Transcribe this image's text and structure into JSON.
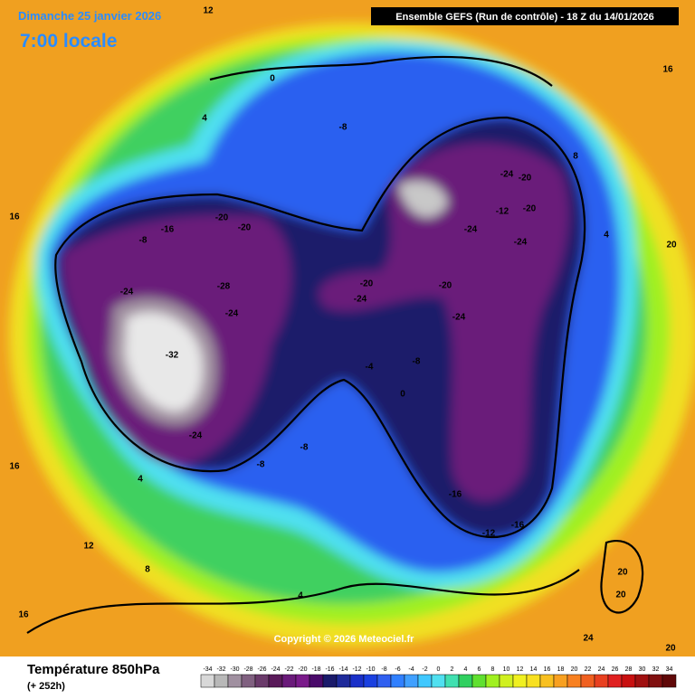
{
  "header": {
    "date": "Dimanche 25 janvier 2026",
    "time": "7:00 locale",
    "run": "Ensemble GEFS  (Run de contrôle)  -  18 Z du 14/01/2026"
  },
  "footer": {
    "field": "Température 850hPa",
    "lead": "(+ 252h)",
    "copyright": "Copyright © 2026 Meteociel.fr"
  },
  "legend": {
    "ticks": [
      -34,
      -32,
      -30,
      -28,
      -26,
      -24,
      -22,
      -20,
      -18,
      -16,
      -14,
      -12,
      -10,
      -8,
      -6,
      -4,
      -2,
      0,
      2,
      4,
      6,
      8,
      10,
      12,
      14,
      16,
      18,
      20,
      22,
      24,
      26,
      28,
      30,
      32,
      34
    ],
    "colors": [
      "#d8d8d8",
      "#b8b8b8",
      "#a090a0",
      "#806080",
      "#6a3a6a",
      "#5a1a5a",
      "#6a1a7a",
      "#7a1a8a",
      "#4a0a6a",
      "#1a1a6a",
      "#1e2a9a",
      "#1a30c8",
      "#1a40e0",
      "#3060f0",
      "#3080ff",
      "#40a0ff",
      "#40c8ff",
      "#50e0f0",
      "#40e0b0",
      "#30d060",
      "#60e030",
      "#a0f020",
      "#d0f020",
      "#f0f020",
      "#f8e020",
      "#f8c020",
      "#f8a020",
      "#f88020",
      "#f06020",
      "#e84020",
      "#e02020",
      "#c81010",
      "#a01010",
      "#801010",
      "#600808"
    ]
  },
  "contour_labels": [
    -20,
    -20,
    -16,
    -8,
    -24,
    -28,
    -24,
    -24,
    -20,
    -24,
    -20,
    -24,
    -24,
    -20,
    -12,
    -20,
    -24,
    -16,
    -16,
    -12,
    -8,
    -8,
    -8,
    -4,
    0,
    -8,
    0,
    4,
    12,
    8,
    -24,
    -32,
    20,
    20,
    24,
    20,
    20,
    16,
    16,
    16,
    4,
    4,
    12,
    16,
    8,
    4
  ]
}
